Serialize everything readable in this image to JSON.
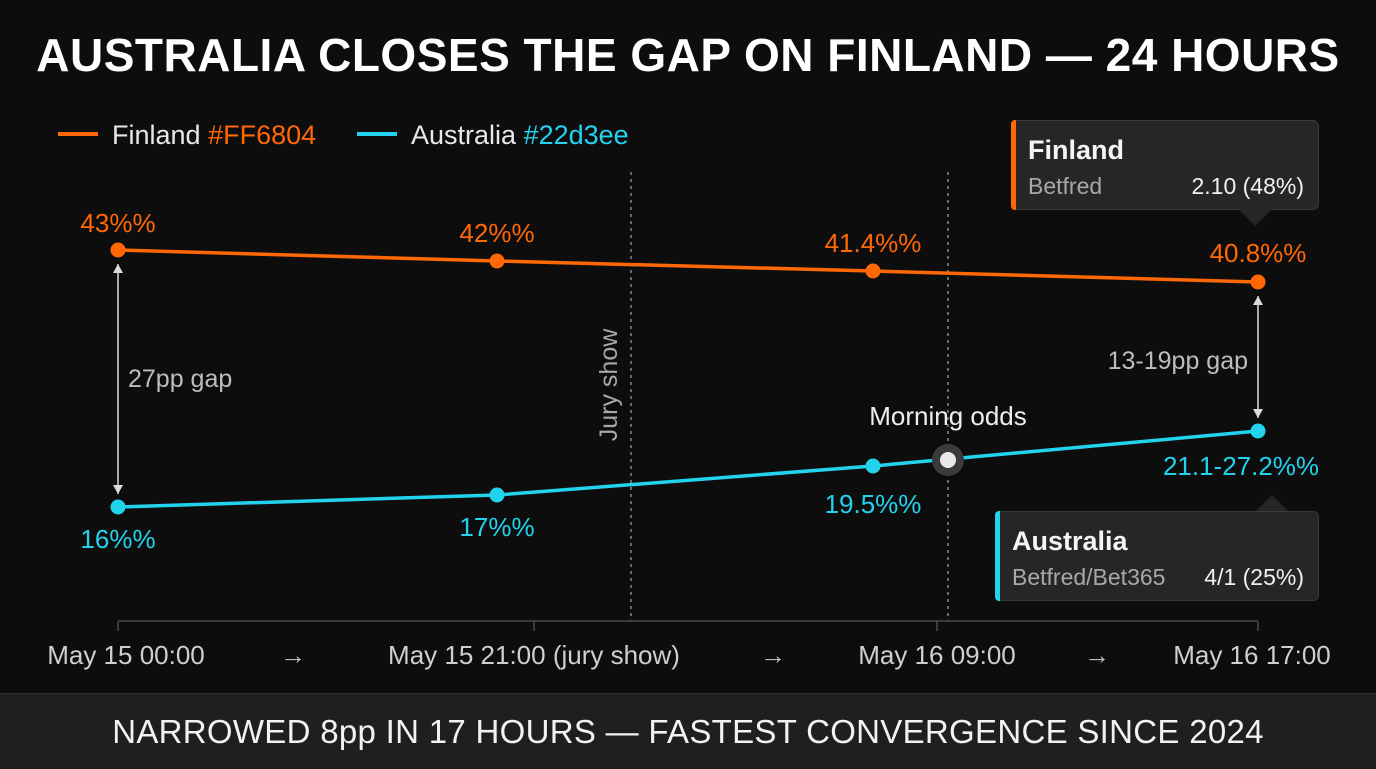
{
  "title": "AUSTRALIA CLOSES THE GAP ON FINLAND — 24 HOURS",
  "footer": "NARROWED 8pp IN 17 HOURS — FASTEST CONVERGENCE SINCE 2024",
  "legend": [
    {
      "name": "Finland",
      "code": "#FF6804",
      "color": "#ff6804"
    },
    {
      "name": "Australia",
      "code": "#22d3ee",
      "color": "#22d3ee"
    }
  ],
  "x_arrow": "→",
  "annotations": {
    "gap_start": "27pp gap",
    "gap_end": "13-19pp gap",
    "jury": "Jury show",
    "morning": "Morning odds"
  },
  "tooltips": {
    "finland": {
      "title": "Finland",
      "source": "Betfred",
      "value": "2.10 (48%)"
    },
    "australia": {
      "title": "Australia",
      "source": "Betfred/Bet365",
      "value": "4/1 (25%)"
    }
  },
  "chart_data": {
    "type": "line",
    "title": "AUSTRALIA CLOSES THE GAP ON FINLAND — 24 HOURS",
    "x": [
      "May 15 00:00",
      "May 15 21:00 (jury show)",
      "May 16 09:00",
      "May 16 17:00"
    ],
    "series": [
      {
        "name": "Finland",
        "color": "#ff6804",
        "values": [
          43,
          42,
          41.4,
          40.8
        ],
        "labels": [
          "43%%",
          "42%%",
          "41.4%%",
          "40.8%%"
        ]
      },
      {
        "name": "Australia",
        "color": "#22d3ee",
        "values": [
          16,
          17,
          19.5,
          22.4
        ],
        "labels": [
          "16%%",
          "17%%",
          "19.5%%",
          "21.1-27.2%%"
        ]
      }
    ],
    "markers": [
      {
        "label": "Jury show",
        "x": "May 15 21:00 (jury show)"
      },
      {
        "label": "Morning odds",
        "x": "May 16 09:00"
      }
    ],
    "grid": false,
    "legend": "top-left"
  }
}
